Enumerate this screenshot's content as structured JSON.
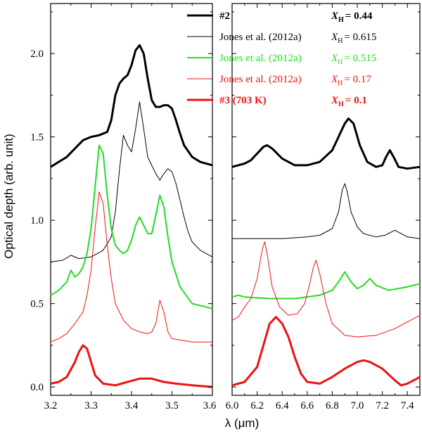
{
  "chart_data": {
    "type": "line",
    "ylabel": "Optical depth (arb. unit)",
    "xlabel": "λ (μm)",
    "ylim": [
      -0.05,
      2.3
    ],
    "yticks": [
      0.0,
      0.5,
      1.0,
      1.5,
      2.0
    ],
    "yticks_text": [
      "0.0",
      "0.5",
      "1.0",
      "1.5",
      "2.0"
    ],
    "panels": [
      {
        "name": "left",
        "xlim": [
          3.2,
          3.6
        ],
        "xticks": [
          3.2,
          3.3,
          3.4,
          3.5
        ],
        "xticks_text": [
          "3.2",
          "3.3",
          "3.4",
          "3.5"
        ],
        "edge_label": "3.6"
      },
      {
        "name": "right",
        "xlim": [
          6.0,
          7.5
        ],
        "xticks": [
          6.0,
          6.2,
          6.4,
          6.6,
          6.8,
          7.0,
          7.2,
          7.4
        ],
        "xticks_text": [
          "6.0",
          "6.2",
          "6.4",
          "6.6",
          "6.8",
          "7.0",
          "7.2",
          "7.4"
        ]
      }
    ],
    "legend_position": "top-right",
    "series": [
      {
        "name": "#2",
        "xh_label": "X",
        "xh_sub": "H",
        "xh_value": "= 0.44",
        "color": "#000000",
        "width": 3,
        "bold": true,
        "left": [
          [
            3.2,
            1.32
          ],
          [
            3.22,
            1.35
          ],
          [
            3.24,
            1.38
          ],
          [
            3.26,
            1.43
          ],
          [
            3.28,
            1.48
          ],
          [
            3.3,
            1.5
          ],
          [
            3.32,
            1.51
          ],
          [
            3.34,
            1.53
          ],
          [
            3.35,
            1.6
          ],
          [
            3.36,
            1.75
          ],
          [
            3.37,
            1.82
          ],
          [
            3.38,
            1.85
          ],
          [
            3.39,
            1.87
          ],
          [
            3.4,
            1.93
          ],
          [
            3.41,
            2.02
          ],
          [
            3.42,
            2.05
          ],
          [
            3.43,
            2.0
          ],
          [
            3.44,
            1.85
          ],
          [
            3.45,
            1.72
          ],
          [
            3.46,
            1.68
          ],
          [
            3.47,
            1.68
          ],
          [
            3.48,
            1.69
          ],
          [
            3.49,
            1.69
          ],
          [
            3.5,
            1.67
          ],
          [
            3.51,
            1.6
          ],
          [
            3.52,
            1.52
          ],
          [
            3.53,
            1.45
          ],
          [
            3.55,
            1.38
          ],
          [
            3.57,
            1.35
          ],
          [
            3.6,
            1.33
          ]
        ],
        "right": [
          [
            6.0,
            1.32
          ],
          [
            6.05,
            1.33
          ],
          [
            6.1,
            1.34
          ],
          [
            6.15,
            1.36
          ],
          [
            6.2,
            1.4
          ],
          [
            6.25,
            1.44
          ],
          [
            6.28,
            1.45
          ],
          [
            6.32,
            1.43
          ],
          [
            6.4,
            1.37
          ],
          [
            6.5,
            1.33
          ],
          [
            6.6,
            1.33
          ],
          [
            6.7,
            1.35
          ],
          [
            6.8,
            1.42
          ],
          [
            6.85,
            1.5
          ],
          [
            6.9,
            1.58
          ],
          [
            6.93,
            1.61
          ],
          [
            6.97,
            1.58
          ],
          [
            7.02,
            1.45
          ],
          [
            7.08,
            1.35
          ],
          [
            7.15,
            1.32
          ],
          [
            7.2,
            1.33
          ],
          [
            7.23,
            1.38
          ],
          [
            7.26,
            1.42
          ],
          [
            7.29,
            1.38
          ],
          [
            7.33,
            1.32
          ],
          [
            7.4,
            1.31
          ],
          [
            7.5,
            1.32
          ]
        ]
      },
      {
        "name": "Jones et al. (2012a)",
        "xh_label": "X",
        "xh_sub": "H",
        "xh_value": "= 0.615",
        "color": "#000000",
        "width": 1,
        "bold": false,
        "left": [
          [
            3.2,
            0.75
          ],
          [
            3.23,
            0.76
          ],
          [
            3.25,
            0.79
          ],
          [
            3.27,
            0.77
          ],
          [
            3.3,
            0.78
          ],
          [
            3.33,
            0.82
          ],
          [
            3.35,
            0.9
          ],
          [
            3.36,
            1.05
          ],
          [
            3.37,
            1.3
          ],
          [
            3.38,
            1.51
          ],
          [
            3.39,
            1.45
          ],
          [
            3.4,
            1.41
          ],
          [
            3.41,
            1.55
          ],
          [
            3.42,
            1.71
          ],
          [
            3.43,
            1.55
          ],
          [
            3.44,
            1.38
          ],
          [
            3.46,
            1.28
          ],
          [
            3.47,
            1.24
          ],
          [
            3.48,
            1.28
          ],
          [
            3.49,
            1.31
          ],
          [
            3.5,
            1.29
          ],
          [
            3.51,
            1.22
          ],
          [
            3.52,
            1.12
          ],
          [
            3.53,
            1.02
          ],
          [
            3.54,
            0.93
          ],
          [
            3.55,
            0.87
          ],
          [
            3.57,
            0.82
          ],
          [
            3.6,
            0.78
          ]
        ],
        "right": [
          [
            6.0,
            0.89
          ],
          [
            6.2,
            0.89
          ],
          [
            6.4,
            0.89
          ],
          [
            6.6,
            0.9
          ],
          [
            6.7,
            0.91
          ],
          [
            6.8,
            0.95
          ],
          [
            6.85,
            1.05
          ],
          [
            6.88,
            1.18
          ],
          [
            6.9,
            1.22
          ],
          [
            6.92,
            1.17
          ],
          [
            6.95,
            1.05
          ],
          [
            7.0,
            0.96
          ],
          [
            7.05,
            0.92
          ],
          [
            7.15,
            0.9
          ],
          [
            7.22,
            0.91
          ],
          [
            7.3,
            0.94
          ],
          [
            7.35,
            0.92
          ],
          [
            7.4,
            0.9
          ],
          [
            7.5,
            0.89
          ]
        ]
      },
      {
        "name": "Jones et al. (2012a)",
        "xh_label": "X",
        "xh_sub": "H",
        "xh_value": "= 0.515",
        "color": "#22dd22",
        "width": 2,
        "bold": false,
        "left": [
          [
            3.2,
            0.55
          ],
          [
            3.22,
            0.58
          ],
          [
            3.24,
            0.63
          ],
          [
            3.25,
            0.7
          ],
          [
            3.26,
            0.66
          ],
          [
            3.27,
            0.68
          ],
          [
            3.28,
            0.72
          ],
          [
            3.29,
            0.8
          ],
          [
            3.3,
            0.95
          ],
          [
            3.31,
            1.2
          ],
          [
            3.32,
            1.45
          ],
          [
            3.33,
            1.4
          ],
          [
            3.34,
            1.15
          ],
          [
            3.35,
            0.95
          ],
          [
            3.36,
            0.85
          ],
          [
            3.37,
            0.82
          ],
          [
            3.38,
            0.8
          ],
          [
            3.39,
            0.82
          ],
          [
            3.4,
            0.88
          ],
          [
            3.41,
            0.97
          ],
          [
            3.42,
            1.02
          ],
          [
            3.43,
            0.97
          ],
          [
            3.44,
            0.92
          ],
          [
            3.45,
            0.92
          ],
          [
            3.46,
            1.03
          ],
          [
            3.47,
            1.15
          ],
          [
            3.48,
            1.08
          ],
          [
            3.49,
            0.9
          ],
          [
            3.5,
            0.75
          ],
          [
            3.52,
            0.6
          ],
          [
            3.55,
            0.5
          ],
          [
            3.6,
            0.47
          ]
        ],
        "right": [
          [
            6.0,
            0.54
          ],
          [
            6.05,
            0.55
          ],
          [
            6.1,
            0.54
          ],
          [
            6.3,
            0.53
          ],
          [
            6.5,
            0.53
          ],
          [
            6.7,
            0.55
          ],
          [
            6.8,
            0.58
          ],
          [
            6.85,
            0.63
          ],
          [
            6.9,
            0.69
          ],
          [
            6.95,
            0.63
          ],
          [
            7.0,
            0.59
          ],
          [
            7.05,
            0.61
          ],
          [
            7.1,
            0.65
          ],
          [
            7.15,
            0.61
          ],
          [
            7.25,
            0.58
          ],
          [
            7.4,
            0.6
          ],
          [
            7.5,
            0.62
          ]
        ]
      },
      {
        "name": "Jones et al. (2012a)",
        "xh_label": "X",
        "xh_sub": "H",
        "xh_value": "= 0.17",
        "color": "#ee1111",
        "width": 1,
        "bold": false,
        "left": [
          [
            3.2,
            0.27
          ],
          [
            3.22,
            0.29
          ],
          [
            3.24,
            0.32
          ],
          [
            3.26,
            0.38
          ],
          [
            3.28,
            0.45
          ],
          [
            3.29,
            0.55
          ],
          [
            3.3,
            0.7
          ],
          [
            3.31,
            0.95
          ],
          [
            3.32,
            1.17
          ],
          [
            3.33,
            1.1
          ],
          [
            3.34,
            0.85
          ],
          [
            3.35,
            0.65
          ],
          [
            3.36,
            0.5
          ],
          [
            3.38,
            0.4
          ],
          [
            3.4,
            0.35
          ],
          [
            3.42,
            0.33
          ],
          [
            3.44,
            0.32
          ],
          [
            3.45,
            0.33
          ],
          [
            3.46,
            0.38
          ],
          [
            3.47,
            0.52
          ],
          [
            3.48,
            0.45
          ],
          [
            3.49,
            0.33
          ],
          [
            3.5,
            0.29
          ],
          [
            3.55,
            0.27
          ],
          [
            3.6,
            0.27
          ]
        ],
        "right": [
          [
            6.0,
            0.4
          ],
          [
            6.05,
            0.42
          ],
          [
            6.1,
            0.48
          ],
          [
            6.15,
            0.53
          ],
          [
            6.2,
            0.65
          ],
          [
            6.24,
            0.82
          ],
          [
            6.26,
            0.87
          ],
          [
            6.28,
            0.8
          ],
          [
            6.32,
            0.6
          ],
          [
            6.38,
            0.48
          ],
          [
            6.45,
            0.43
          ],
          [
            6.52,
            0.44
          ],
          [
            6.58,
            0.5
          ],
          [
            6.62,
            0.62
          ],
          [
            6.65,
            0.72
          ],
          [
            6.67,
            0.76
          ],
          [
            6.7,
            0.68
          ],
          [
            6.75,
            0.5
          ],
          [
            6.8,
            0.38
          ],
          [
            6.9,
            0.31
          ],
          [
            7.0,
            0.3
          ],
          [
            7.15,
            0.31
          ],
          [
            7.3,
            0.35
          ],
          [
            7.4,
            0.39
          ],
          [
            7.5,
            0.43
          ]
        ]
      },
      {
        "name": "#3 (703 K)",
        "xh_label": "X",
        "xh_sub": "H",
        "xh_value": "= 0.1",
        "color": "#ee1111",
        "width": 3,
        "bold": true,
        "left": [
          [
            3.2,
            0.02
          ],
          [
            3.22,
            0.03
          ],
          [
            3.24,
            0.06
          ],
          [
            3.26,
            0.15
          ],
          [
            3.27,
            0.21
          ],
          [
            3.28,
            0.25
          ],
          [
            3.29,
            0.23
          ],
          [
            3.3,
            0.15
          ],
          [
            3.31,
            0.07
          ],
          [
            3.33,
            0.02
          ],
          [
            3.36,
            0.01
          ],
          [
            3.39,
            0.03
          ],
          [
            3.42,
            0.05
          ],
          [
            3.45,
            0.05
          ],
          [
            3.48,
            0.03
          ],
          [
            3.51,
            0.02
          ],
          [
            3.55,
            0.01
          ],
          [
            3.6,
            0.0
          ]
        ],
        "right": [
          [
            6.0,
            0.01
          ],
          [
            6.1,
            0.03
          ],
          [
            6.2,
            0.12
          ],
          [
            6.25,
            0.25
          ],
          [
            6.3,
            0.38
          ],
          [
            6.35,
            0.42
          ],
          [
            6.4,
            0.38
          ],
          [
            6.45,
            0.3
          ],
          [
            6.5,
            0.18
          ],
          [
            6.55,
            0.08
          ],
          [
            6.6,
            0.03
          ],
          [
            6.7,
            0.02
          ],
          [
            6.8,
            0.06
          ],
          [
            6.9,
            0.11
          ],
          [
            7.0,
            0.15
          ],
          [
            7.05,
            0.16
          ],
          [
            7.1,
            0.15
          ],
          [
            7.2,
            0.11
          ],
          [
            7.3,
            0.04
          ],
          [
            7.35,
            0.01
          ],
          [
            7.4,
            0.02
          ],
          [
            7.45,
            0.04
          ],
          [
            7.5,
            0.06
          ]
        ]
      }
    ]
  }
}
